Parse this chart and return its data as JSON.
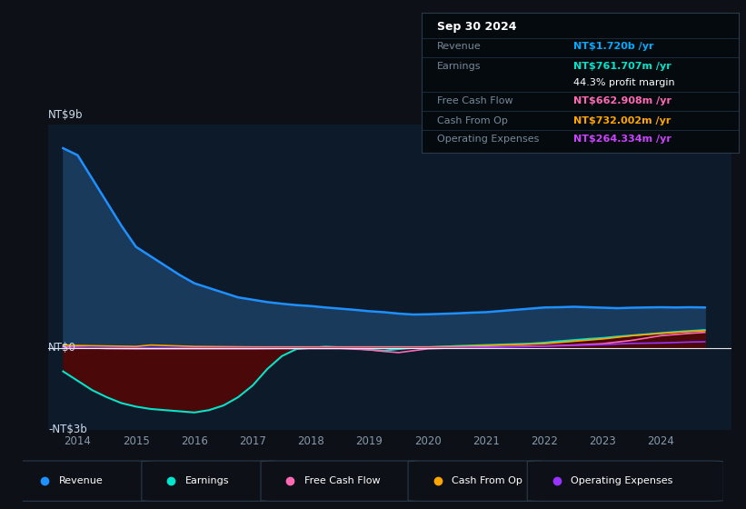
{
  "bg_color": "#0d1117",
  "plot_bg_color": "#0d1a2a",
  "y_label_top": "NT$9b",
  "y_label_mid": "NT$0",
  "y_label_bot": "-NT$3b",
  "y_min": -3.5,
  "y_max": 9.5,
  "x_min": 2013.5,
  "x_max": 2025.2,
  "x_ticks": [
    2014,
    2015,
    2016,
    2017,
    2018,
    2019,
    2020,
    2021,
    2022,
    2023,
    2024
  ],
  "info_box": {
    "date": "Sep 30 2024",
    "revenue_val": "NT$1.720b",
    "revenue_color": "#00aaff",
    "earnings_val": "NT$761.707m",
    "earnings_color": "#00e5cc",
    "margin_pct": "44.3%",
    "fcf_val": "NT$662.908m",
    "fcf_color": "#ff69b4",
    "cashop_val": "NT$732.002m",
    "cashop_color": "#ffa500",
    "opex_val": "NT$264.334m",
    "opex_color": "#cc44ff"
  },
  "revenue_color": "#1e90ff",
  "revenue_fill_color": "#1a3a5c",
  "earnings_color": "#00e5cc",
  "earnings_fill_color": "#4a0808",
  "fcf_color": "#ff69b4",
  "cashop_color": "#ffa500",
  "opex_color": "#9933ff",
  "grid_color": "#1e2a3a",
  "legend": [
    {
      "label": "Revenue",
      "color": "#1e90ff"
    },
    {
      "label": "Earnings",
      "color": "#00e5cc"
    },
    {
      "label": "Free Cash Flow",
      "color": "#ff69b4"
    },
    {
      "label": "Cash From Op",
      "color": "#ffa500"
    },
    {
      "label": "Operating Expenses",
      "color": "#9933ff"
    }
  ],
  "revenue_x": [
    2013.75,
    2014.0,
    2014.25,
    2014.5,
    2014.75,
    2015.0,
    2015.25,
    2015.5,
    2015.75,
    2016.0,
    2016.25,
    2016.5,
    2016.75,
    2017.0,
    2017.25,
    2017.5,
    2017.75,
    2018.0,
    2018.25,
    2018.5,
    2018.75,
    2019.0,
    2019.25,
    2019.5,
    2019.75,
    2020.0,
    2020.25,
    2020.5,
    2020.75,
    2021.0,
    2021.25,
    2021.5,
    2021.75,
    2022.0,
    2022.25,
    2022.5,
    2022.75,
    2023.0,
    2023.25,
    2023.5,
    2023.75,
    2024.0,
    2024.25,
    2024.5,
    2024.75
  ],
  "revenue_y": [
    8.5,
    8.2,
    7.2,
    6.2,
    5.2,
    4.3,
    3.9,
    3.5,
    3.1,
    2.75,
    2.55,
    2.35,
    2.15,
    2.05,
    1.95,
    1.88,
    1.82,
    1.78,
    1.72,
    1.67,
    1.62,
    1.56,
    1.52,
    1.46,
    1.42,
    1.43,
    1.45,
    1.47,
    1.5,
    1.52,
    1.57,
    1.62,
    1.67,
    1.72,
    1.73,
    1.75,
    1.73,
    1.71,
    1.69,
    1.71,
    1.72,
    1.73,
    1.72,
    1.73,
    1.72
  ],
  "earnings_x": [
    2013.75,
    2014.0,
    2014.25,
    2014.5,
    2014.75,
    2015.0,
    2015.25,
    2015.5,
    2015.75,
    2016.0,
    2016.25,
    2016.5,
    2016.75,
    2017.0,
    2017.25,
    2017.5,
    2017.75,
    2018.0,
    2018.25,
    2018.5,
    2018.75,
    2019.0,
    2019.25,
    2019.5,
    2019.75,
    2020.0,
    2020.25,
    2020.5,
    2020.75,
    2021.0,
    2021.25,
    2021.5,
    2021.75,
    2022.0,
    2022.25,
    2022.5,
    2022.75,
    2023.0,
    2023.25,
    2023.5,
    2023.75,
    2024.0,
    2024.25,
    2024.5,
    2024.75
  ],
  "earnings_y": [
    -1.0,
    -1.4,
    -1.8,
    -2.1,
    -2.35,
    -2.5,
    -2.6,
    -2.65,
    -2.7,
    -2.75,
    -2.65,
    -2.45,
    -2.1,
    -1.6,
    -0.9,
    -0.35,
    -0.05,
    0.0,
    0.05,
    0.02,
    -0.02,
    -0.08,
    -0.12,
    -0.05,
    0.0,
    0.02,
    0.05,
    0.08,
    0.1,
    0.12,
    0.14,
    0.16,
    0.18,
    0.22,
    0.28,
    0.33,
    0.38,
    0.42,
    0.48,
    0.53,
    0.58,
    0.63,
    0.68,
    0.72,
    0.76
  ],
  "fcf_x": [
    2013.75,
    2014.0,
    2014.5,
    2015.0,
    2015.5,
    2016.0,
    2016.5,
    2017.0,
    2017.5,
    2018.0,
    2018.5,
    2019.0,
    2019.25,
    2019.5,
    2020.0,
    2020.5,
    2021.0,
    2021.5,
    2022.0,
    2022.5,
    2023.0,
    2023.5,
    2024.0,
    2024.5,
    2024.75
  ],
  "fcf_y": [
    0.05,
    0.02,
    -0.03,
    -0.04,
    -0.04,
    -0.04,
    -0.04,
    -0.04,
    -0.03,
    -0.03,
    -0.03,
    -0.08,
    -0.15,
    -0.2,
    -0.04,
    0.0,
    0.04,
    0.06,
    0.08,
    0.12,
    0.18,
    0.32,
    0.52,
    0.62,
    0.66
  ],
  "cashop_x": [
    2013.75,
    2014.0,
    2014.5,
    2015.0,
    2015.25,
    2015.5,
    2015.75,
    2016.0,
    2016.5,
    2017.0,
    2017.5,
    2018.0,
    2018.5,
    2019.0,
    2019.5,
    2020.0,
    2020.5,
    2021.0,
    2021.5,
    2022.0,
    2022.5,
    2023.0,
    2023.5,
    2024.0,
    2024.5,
    2024.75
  ],
  "cashop_y": [
    0.12,
    0.1,
    0.08,
    0.06,
    0.12,
    0.1,
    0.08,
    0.06,
    0.05,
    0.04,
    0.04,
    0.04,
    0.04,
    0.04,
    0.04,
    0.04,
    0.06,
    0.1,
    0.14,
    0.18,
    0.28,
    0.38,
    0.52,
    0.62,
    0.7,
    0.73
  ],
  "opex_x": [
    2013.75,
    2014.0,
    2015.0,
    2016.0,
    2017.0,
    2018.0,
    2019.0,
    2020.0,
    2020.5,
    2021.0,
    2021.5,
    2022.0,
    2022.5,
    2023.0,
    2023.5,
    2024.0,
    2024.5,
    2024.75
  ],
  "opex_y": [
    0.0,
    0.0,
    0.0,
    0.0,
    0.0,
    0.0,
    0.0,
    0.0,
    0.01,
    0.02,
    0.04,
    0.07,
    0.1,
    0.14,
    0.19,
    0.21,
    0.25,
    0.26
  ]
}
